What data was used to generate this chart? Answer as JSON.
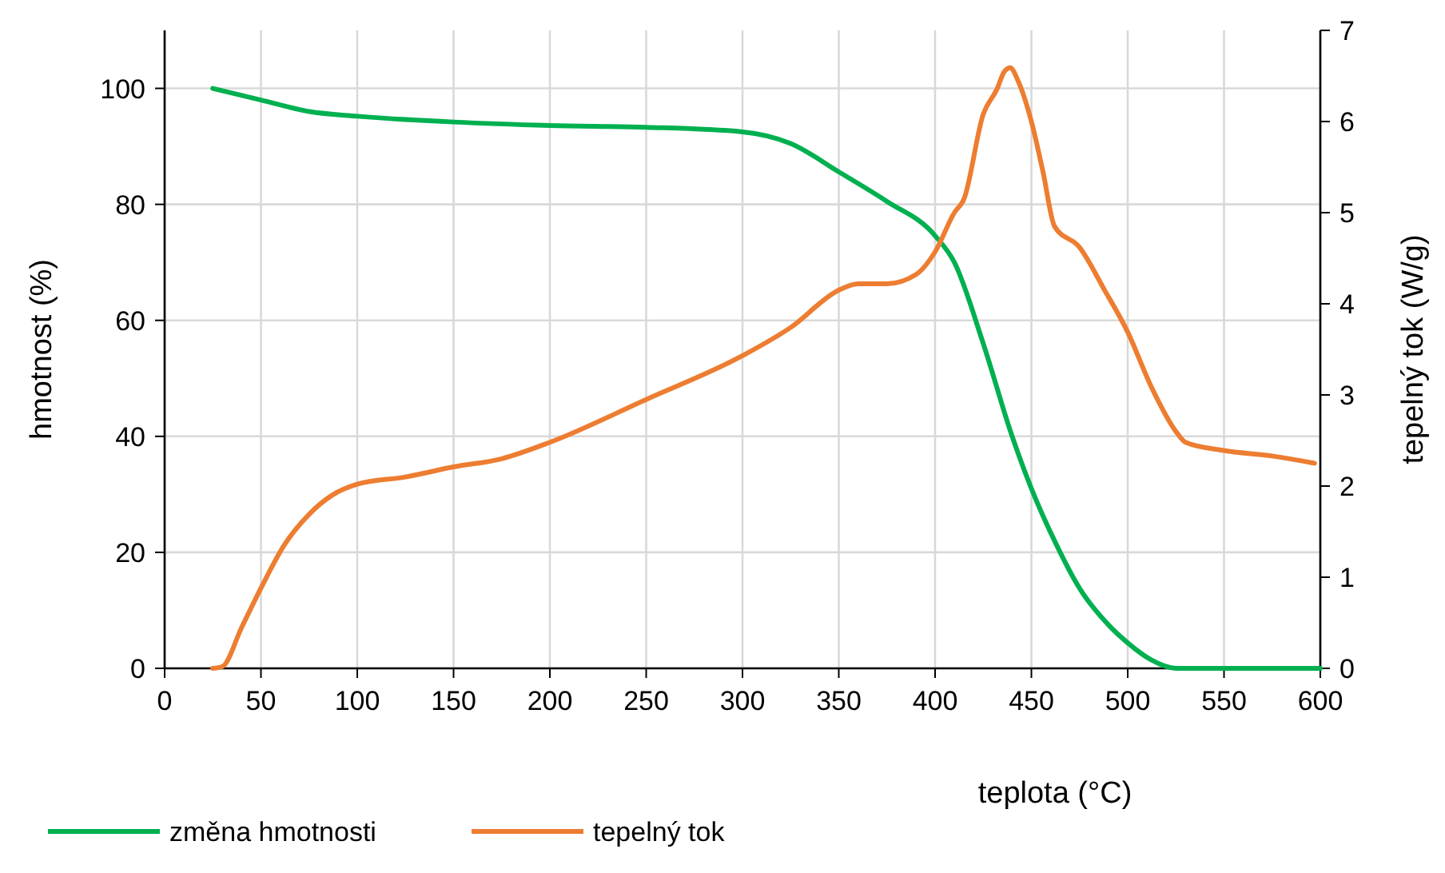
{
  "chart_data": {
    "type": "line",
    "xlabel": "teplota (°C)",
    "ylabel": "hmotnost (%)",
    "y2label": "tepelný tok (W/g)",
    "xlim": [
      0,
      600
    ],
    "xticks": [
      0,
      50,
      100,
      150,
      200,
      250,
      300,
      350,
      400,
      450,
      500,
      550,
      600
    ],
    "ylim": [
      0,
      110
    ],
    "yticks": [
      0,
      20,
      40,
      60,
      80,
      100
    ],
    "y2lim": [
      0,
      7
    ],
    "y2ticks": [
      0,
      1,
      2,
      3,
      4,
      5,
      6,
      7
    ],
    "grid": true,
    "legend": "bottom",
    "marker": "none",
    "line_style": "solid",
    "series": [
      {
        "name": "změna hmotnosti",
        "color": "#00b050",
        "x": [
          25,
          50,
          75,
          100,
          150,
          200,
          250,
          300,
          325,
          350,
          375,
          400,
          410,
          425,
          440,
          450,
          462,
          475,
          490,
          500,
          512,
          525,
          550,
          600
        ],
        "values": [
          100,
          98,
          96,
          95.2,
          94.2,
          93.6,
          93.3,
          92.5,
          90.5,
          85.6,
          80.5,
          74.6,
          70,
          56,
          40,
          31,
          22,
          13.8,
          7.5,
          4.4,
          1.5,
          0,
          0,
          0
        ]
      },
      {
        "name": "tepelný tok",
        "color": "#ed7d31",
        "axis": "y2",
        "x": [
          25,
          30,
          40,
          50,
          62,
          75,
          87,
          100,
          125,
          150,
          175,
          200,
          250,
          300,
          325,
          350,
          360,
          375,
          390,
          400,
          410,
          415,
          425,
          432,
          436,
          439,
          443,
          450,
          456,
          462,
          475,
          488,
          500,
          512,
          525,
          530,
          550,
          575,
          597
        ],
        "values": [
          0,
          0.02,
          0.45,
          0.88,
          1.35,
          1.69,
          1.9,
          2.02,
          2.1,
          2.21,
          2.3,
          2.48,
          2.95,
          3.43,
          3.74,
          4.15,
          4.22,
          4.22,
          4.32,
          4.57,
          5.0,
          5.15,
          6.08,
          6.35,
          6.55,
          6.59,
          6.45,
          6.0,
          5.45,
          4.85,
          4.62,
          4.15,
          3.69,
          3.1,
          2.6,
          2.48,
          2.39,
          2.33,
          2.25
        ]
      }
    ]
  }
}
